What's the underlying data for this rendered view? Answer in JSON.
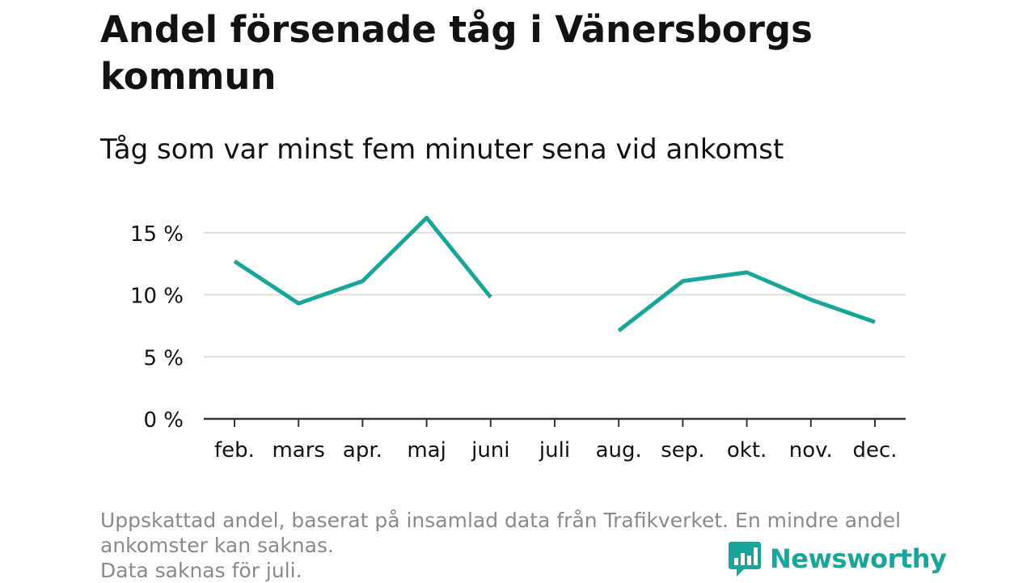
{
  "title": "Andel försenade tåg i Vänersborgs kommun",
  "subtitle": "Tåg som var minst fem minuter sena vid ankomst",
  "notes": [
    "Uppskattad andel, baserat på insamlad data från Trafikverket. En mindre andel",
    "ankomster kan saknas.",
    "Data saknas för juli."
  ],
  "brand": "Newsworthy",
  "colors": {
    "line": "#1aa59b",
    "grid": "#dddddd",
    "axis": "#333333",
    "text": "#111111",
    "note": "#8a8a8a"
  },
  "chart_data": {
    "type": "line",
    "categories": [
      "feb.",
      "mars",
      "apr.",
      "maj",
      "juni",
      "juli",
      "aug.",
      "sep.",
      "okt.",
      "nov.",
      "dec."
    ],
    "series": [
      {
        "values": [
          12.7,
          9.3,
          11.1,
          16.2,
          9.8,
          null,
          7.1,
          11.1,
          11.8,
          9.6,
          7.8
        ]
      }
    ],
    "y_ticks": [
      0,
      5,
      10,
      15
    ],
    "y_tick_labels": [
      "0 %",
      "5 %",
      "10 %",
      "15 %"
    ],
    "ylim": [
      0,
      17
    ],
    "grid": true,
    "xlabel": "",
    "ylabel": ""
  }
}
